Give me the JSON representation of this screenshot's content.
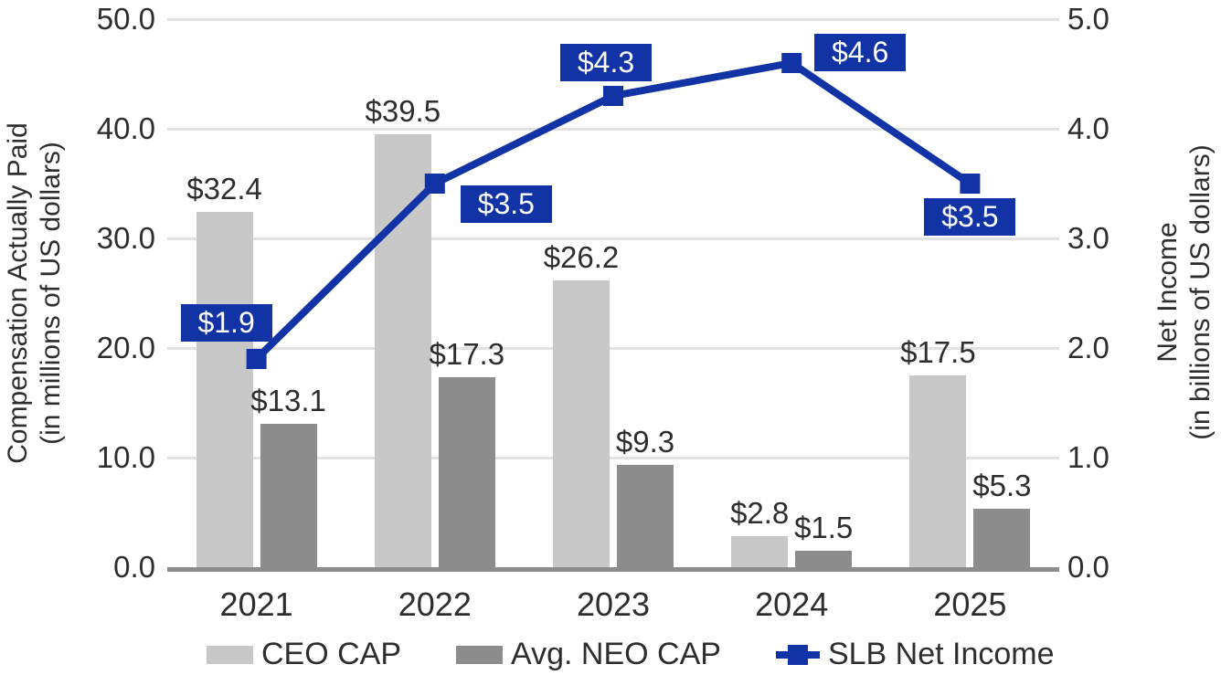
{
  "chart_data": {
    "type": "combo-bar-line",
    "categories": [
      "2021",
      "2022",
      "2023",
      "2024",
      "2025"
    ],
    "series": [
      {
        "name": "CEO CAP",
        "type": "bar",
        "axis": "left",
        "values": [
          32.4,
          39.5,
          26.2,
          2.8,
          17.5
        ],
        "data_labels": [
          "$32.4",
          "$39.5",
          "$26.2",
          "$2.8",
          "$17.5"
        ],
        "color": "#c8c8c8"
      },
      {
        "name": "Avg. NEO CAP",
        "type": "bar",
        "axis": "left",
        "values": [
          13.1,
          17.3,
          9.3,
          1.5,
          5.3
        ],
        "data_labels": [
          "$13.1",
          "$17.3",
          "$9.3",
          "$1.5",
          "$5.3"
        ],
        "color": "#8c8c8c"
      },
      {
        "name": "SLB Net Income",
        "type": "line",
        "axis": "right",
        "values": [
          1.9,
          3.5,
          4.3,
          4.6,
          3.5
        ],
        "data_labels": [
          "$1.9",
          "$3.5",
          "$4.3",
          "$4.6",
          "$3.5"
        ],
        "color": "#1133a6",
        "label_box_offsets": [
          [
            -83,
            -60
          ],
          [
            28,
            2
          ],
          [
            -58,
            -57
          ],
          [
            25,
            -32
          ],
          [
            -50,
            16
          ]
        ]
      }
    ],
    "left_axis": {
      "title_line1": "Compensation Actually Paid",
      "title_line2": "(in millions of US dollars)",
      "min": 0,
      "max": 50,
      "step": 10,
      "ticks": [
        "50.0",
        "40.0",
        "30.0",
        "20.0",
        "10.0",
        "0.0"
      ]
    },
    "right_axis": {
      "title_line1": "Net Income",
      "title_line2": "(in billions of US dollars)",
      "min": 0,
      "max": 5,
      "step": 1,
      "ticks": [
        "5.0",
        "4.0",
        "3.0",
        "2.0",
        "1.0",
        "0.0"
      ]
    },
    "grid": true,
    "legend_position": "bottom",
    "colors": {
      "gridline": "#e2e2e2",
      "axis_line": "#8c8c8c",
      "text": "#2e2e2e",
      "line_label_text": "#ffffff"
    }
  }
}
